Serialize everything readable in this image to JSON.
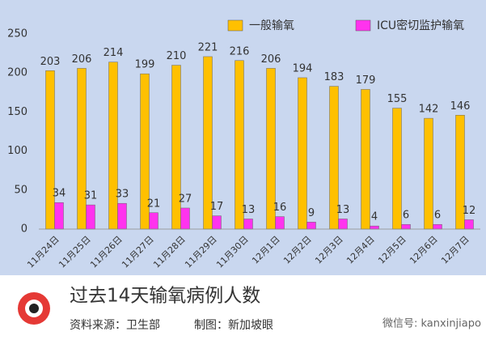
{
  "chart_data": {
    "type": "bar",
    "categories": [
      "11月24日",
      "11月25日",
      "11月26日",
      "11月27日",
      "11月28日",
      "11月29日",
      "11月30日",
      "12月1日",
      "12月2日",
      "12月3日",
      "12月4日",
      "12月5日",
      "12月6日",
      "12月7日"
    ],
    "series": [
      {
        "name": "一般输氧",
        "color": "#ffc000",
        "values": [
          203,
          206,
          214,
          199,
          210,
          221,
          216,
          206,
          194,
          183,
          179,
          155,
          142,
          146
        ]
      },
      {
        "name": "ICU密切监护输氧",
        "color": "#ff33ee",
        "values": [
          34,
          31,
          33,
          21,
          27,
          17,
          13,
          16,
          9,
          13,
          4,
          6,
          6,
          12
        ]
      }
    ],
    "ylim": [
      0,
      250
    ],
    "yticks": [
      0,
      50,
      100,
      150,
      200,
      250
    ],
    "grid": false,
    "legend": "top"
  },
  "footer": {
    "title": "过去14天输氧病例人数",
    "source": "资料来源：卫生部",
    "credit": "制图：新加坡眼",
    "watermark": "微信号: kanxinjiapo"
  }
}
